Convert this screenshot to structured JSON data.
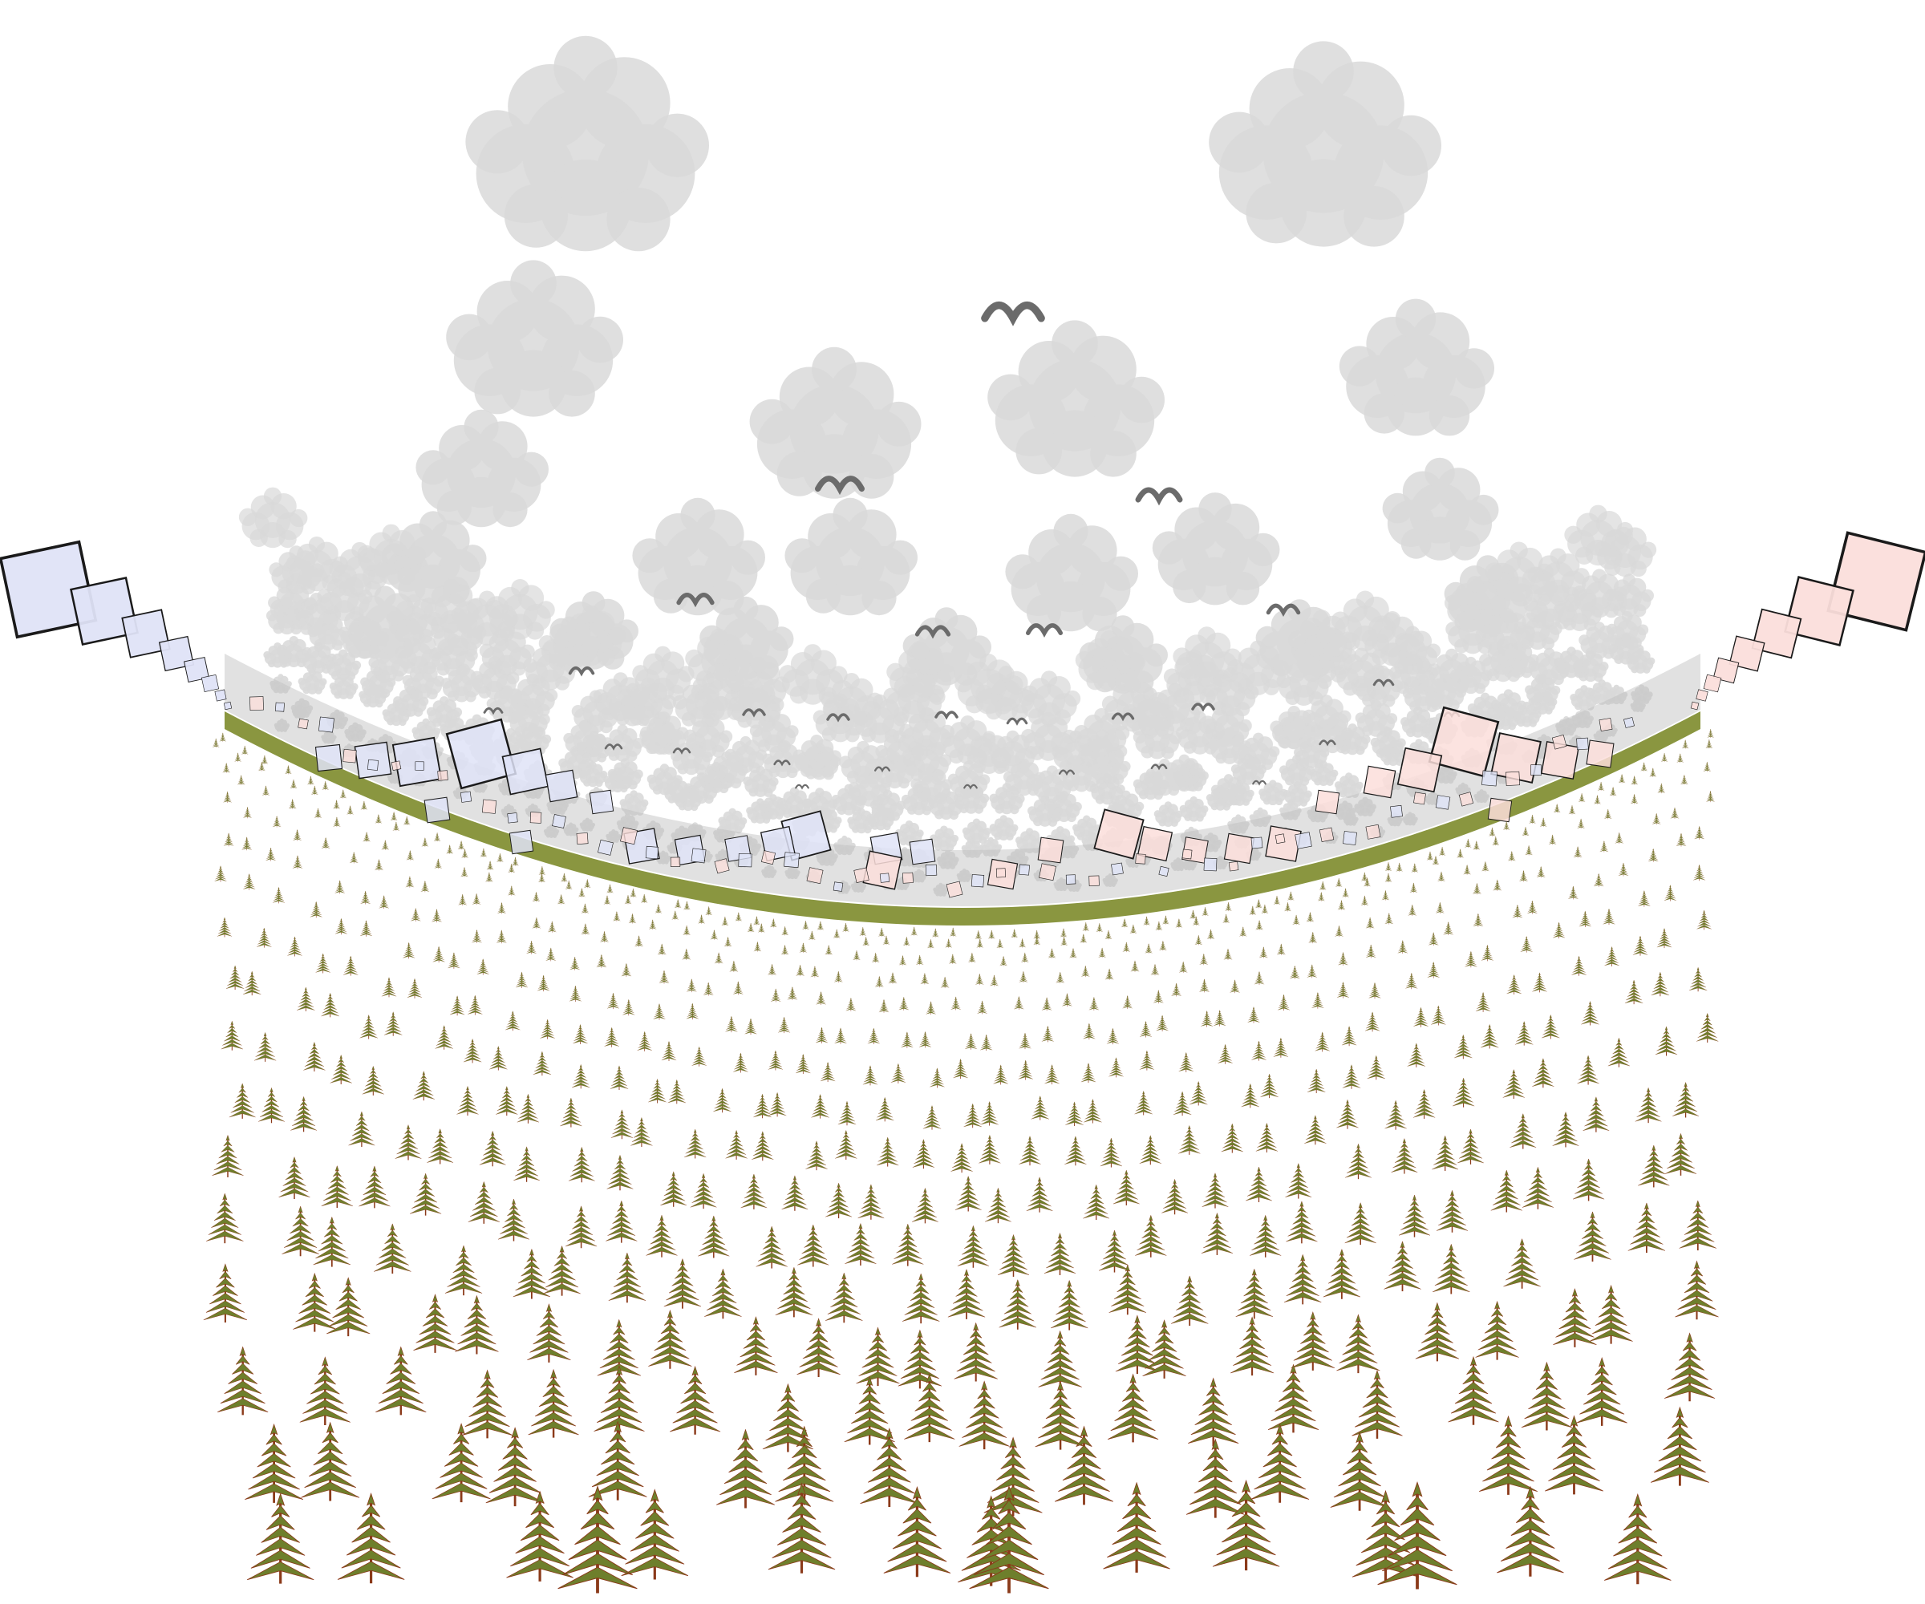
{
  "palette": {
    "background": "#ffffff",
    "cloud": "#d9d9d9",
    "bird": "#6b6b6b",
    "tree_foliage": "#6e7f2c",
    "tree_trunk": "#8b3a1a",
    "band_green": "#8a9640",
    "left_square_fill": "#dfe3f7",
    "right_square_fill": "#fbdedb",
    "square_stroke": "#1a1a1a"
  },
  "icons": {
    "cloud": "cloud-icon",
    "bird": "bird-icon",
    "tree": "pine-tree-icon",
    "square": "square-kite-icon"
  }
}
